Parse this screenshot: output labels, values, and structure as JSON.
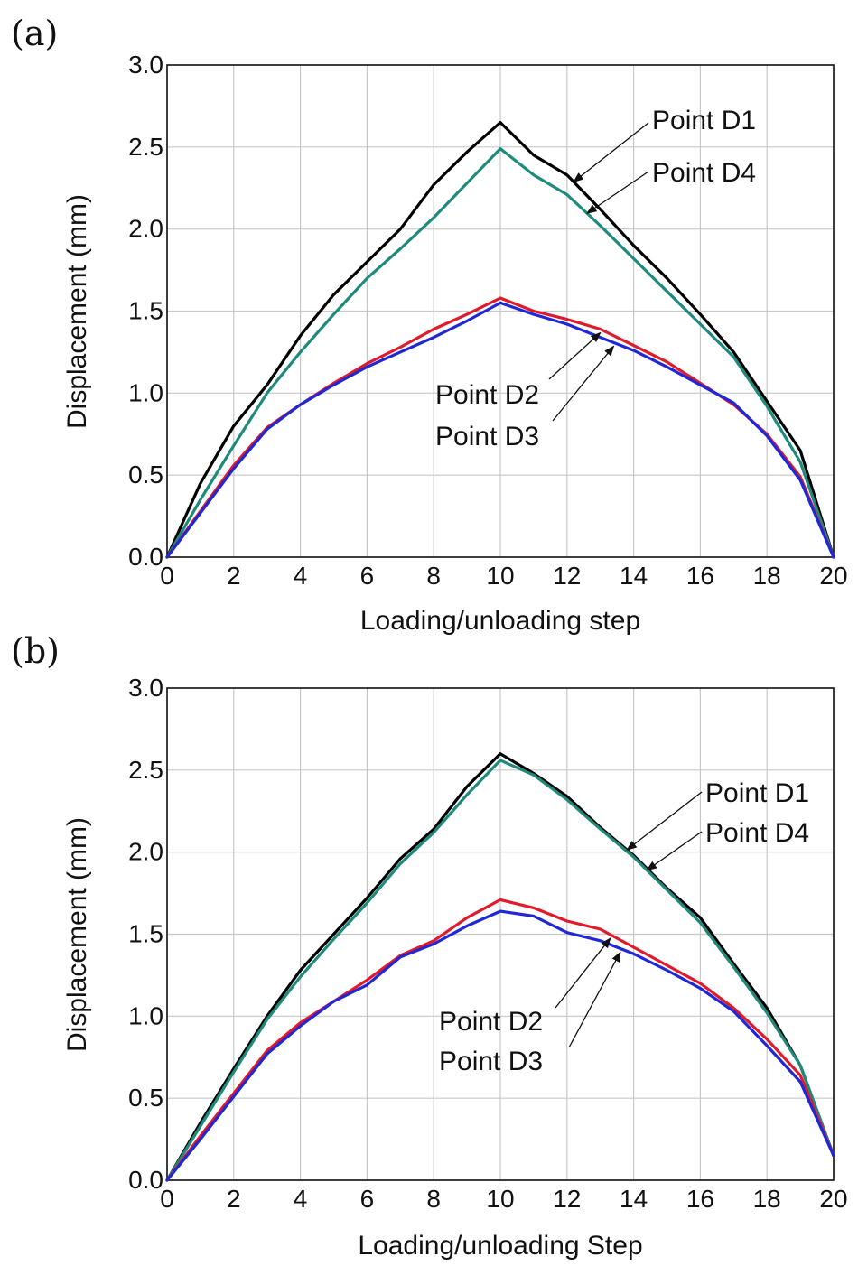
{
  "chart_data": [
    {
      "type": "line",
      "panel_label": "(a)",
      "xlabel": "Loading/unloading step",
      "ylabel": "Displacement (mm)",
      "xlim": [
        0,
        20
      ],
      "ylim": [
        0,
        3.0
      ],
      "xticks": [
        "0",
        "2",
        "4",
        "6",
        "8",
        "10",
        "12",
        "14",
        "16",
        "18",
        "20"
      ],
      "yticks": [
        "0.0",
        "0.5",
        "1.0",
        "1.5",
        "2.0",
        "2.5",
        "3.0"
      ],
      "grid": true,
      "series": [
        {
          "name": "Point D1",
          "color": "#000000",
          "x": [
            0,
            1,
            2,
            3,
            4,
            5,
            6,
            7,
            8,
            9,
            10,
            11,
            12,
            13,
            14,
            15,
            16,
            17,
            18,
            19,
            20
          ],
          "y": [
            0.0,
            0.45,
            0.8,
            1.05,
            1.35,
            1.6,
            1.8,
            2.0,
            2.27,
            2.47,
            2.65,
            2.45,
            2.33,
            2.12,
            1.9,
            1.7,
            1.48,
            1.25,
            0.95,
            0.65,
            0.0
          ]
        },
        {
          "name": "Point D4",
          "color": "#1e8a7c",
          "x": [
            0,
            1,
            2,
            3,
            4,
            5,
            6,
            7,
            8,
            9,
            10,
            11,
            12,
            13,
            14,
            15,
            16,
            17,
            18,
            19,
            20
          ],
          "y": [
            0.0,
            0.35,
            0.68,
            1.0,
            1.25,
            1.48,
            1.7,
            1.88,
            2.07,
            2.28,
            2.49,
            2.33,
            2.21,
            2.02,
            1.82,
            1.62,
            1.42,
            1.22,
            0.92,
            0.58,
            0.0
          ]
        },
        {
          "name": "Point D2",
          "color": "#e01a2a",
          "x": [
            0,
            1,
            2,
            3,
            4,
            5,
            6,
            7,
            8,
            9,
            10,
            11,
            12,
            13,
            14,
            15,
            16,
            17,
            18,
            19,
            20
          ],
          "y": [
            0.0,
            0.28,
            0.56,
            0.79,
            0.93,
            1.06,
            1.18,
            1.28,
            1.39,
            1.48,
            1.58,
            1.5,
            1.45,
            1.39,
            1.29,
            1.19,
            1.06,
            0.93,
            0.75,
            0.49,
            0.0
          ]
        },
        {
          "name": "Point D3",
          "color": "#2028d6",
          "x": [
            0,
            1,
            2,
            3,
            4,
            5,
            6,
            7,
            8,
            9,
            10,
            11,
            12,
            13,
            14,
            15,
            16,
            17,
            18,
            19,
            20
          ],
          "y": [
            0.0,
            0.27,
            0.54,
            0.78,
            0.93,
            1.05,
            1.16,
            1.25,
            1.34,
            1.44,
            1.55,
            1.48,
            1.42,
            1.34,
            1.26,
            1.16,
            1.05,
            0.94,
            0.74,
            0.47,
            0.0
          ]
        }
      ],
      "annotations": [
        {
          "text": "Point D1",
          "series": "Point D1",
          "x": 12.2
        },
        {
          "text": "Point D4",
          "series": "Point D4",
          "x": 12.6
        },
        {
          "text": "Point D2",
          "series": "Point D2",
          "x": 13.0
        },
        {
          "text": "Point D3",
          "series": "Point D3",
          "x": 13.4
        }
      ]
    },
    {
      "type": "line",
      "panel_label": "(b)",
      "xlabel": "Loading/unloading Step",
      "ylabel": "Displacement (mm)",
      "xlim": [
        0,
        20
      ],
      "ylim": [
        0,
        3.0
      ],
      "xticks": [
        "0",
        "2",
        "4",
        "6",
        "8",
        "10",
        "12",
        "14",
        "16",
        "18",
        "20"
      ],
      "yticks": [
        "0.0",
        "0.5",
        "1.0",
        "1.5",
        "2.0",
        "2.5",
        "3.0"
      ],
      "grid": true,
      "series": [
        {
          "name": "Point D1",
          "color": "#000000",
          "x": [
            0,
            1,
            2,
            3,
            4,
            5,
            6,
            7,
            8,
            9,
            10,
            11,
            12,
            13,
            14,
            15,
            16,
            17,
            18,
            19,
            20
          ],
          "y": [
            0.0,
            0.35,
            0.68,
            1.0,
            1.28,
            1.5,
            1.72,
            1.96,
            2.14,
            2.4,
            2.6,
            2.48,
            2.34,
            2.15,
            1.98,
            1.78,
            1.6,
            1.32,
            1.05,
            0.7,
            0.15
          ]
        },
        {
          "name": "Point D4",
          "color": "#1e8a7c",
          "x": [
            0,
            1,
            2,
            3,
            4,
            5,
            6,
            7,
            8,
            9,
            10,
            11,
            12,
            13,
            14,
            15,
            16,
            17,
            18,
            19,
            20
          ],
          "y": [
            0.0,
            0.33,
            0.66,
            0.98,
            1.24,
            1.47,
            1.69,
            1.93,
            2.12,
            2.35,
            2.56,
            2.47,
            2.32,
            2.14,
            1.97,
            1.77,
            1.57,
            1.3,
            1.02,
            0.7,
            0.15
          ]
        },
        {
          "name": "Point D2",
          "color": "#e01a2a",
          "x": [
            0,
            1,
            2,
            3,
            4,
            5,
            6,
            7,
            8,
            9,
            10,
            11,
            12,
            13,
            14,
            15,
            16,
            17,
            18,
            19,
            20
          ],
          "y": [
            0.0,
            0.27,
            0.53,
            0.79,
            0.96,
            1.09,
            1.22,
            1.37,
            1.46,
            1.6,
            1.71,
            1.66,
            1.58,
            1.53,
            1.42,
            1.31,
            1.2,
            1.05,
            0.86,
            0.64,
            0.15
          ]
        },
        {
          "name": "Point D3",
          "color": "#2028d6",
          "x": [
            0,
            1,
            2,
            3,
            4,
            5,
            6,
            7,
            8,
            9,
            10,
            11,
            12,
            13,
            14,
            15,
            16,
            17,
            18,
            19,
            20
          ],
          "y": [
            0.0,
            0.25,
            0.51,
            0.77,
            0.94,
            1.09,
            1.19,
            1.36,
            1.44,
            1.55,
            1.64,
            1.61,
            1.51,
            1.46,
            1.38,
            1.28,
            1.17,
            1.03,
            0.82,
            0.6,
            0.15
          ]
        }
      ],
      "annotations": [
        {
          "text": "Point D1",
          "series": "Point D1",
          "x": 13.8
        },
        {
          "text": "Point D4",
          "series": "Point D4",
          "x": 14.4
        },
        {
          "text": "Point D2",
          "series": "Point D2",
          "x": 13.3
        },
        {
          "text": "Point D3",
          "series": "Point D3",
          "x": 13.6
        }
      ]
    }
  ]
}
